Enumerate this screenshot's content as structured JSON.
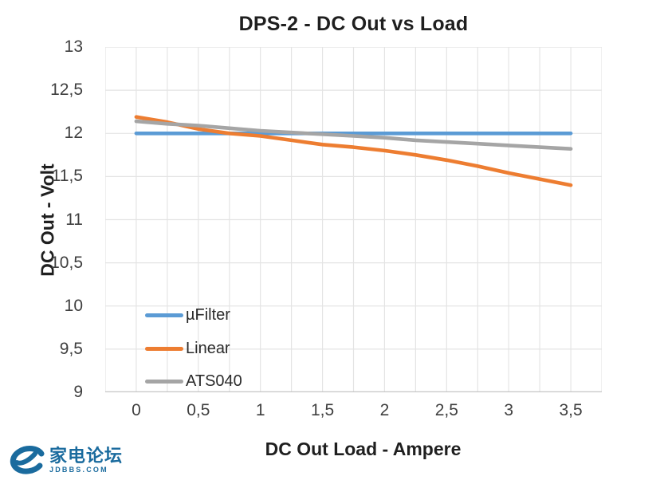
{
  "chart_data": {
    "type": "line",
    "title": "DPS-2 - DC Out vs Load",
    "xlabel": "DC Out Load - Ampere",
    "ylabel": "DC Out - Volt",
    "xlim": [
      -0.25,
      3.75
    ],
    "ylim": [
      9,
      13
    ],
    "x_grid_step": 0.25,
    "y_grid_step": 0.5,
    "grid": true,
    "legend_position": "inside-bottom-left",
    "x": [
      0,
      0.25,
      0.5,
      0.75,
      1,
      1.25,
      1.5,
      1.75,
      2,
      2.25,
      2.5,
      2.75,
      3,
      3.25,
      3.5
    ],
    "series": [
      {
        "name": "µFilter",
        "color": "#5B9BD5",
        "values": [
          12,
          12,
          12,
          12,
          12,
          12,
          12,
          12,
          12,
          12,
          12,
          12,
          12,
          12,
          12
        ]
      },
      {
        "name": "Linear",
        "color": "#ED7D31",
        "values": [
          12.19,
          12.13,
          12.05,
          12.0,
          11.97,
          11.92,
          11.87,
          11.84,
          11.8,
          11.75,
          11.69,
          11.62,
          11.54,
          11.47,
          11.4
        ]
      },
      {
        "name": "ATS040",
        "color": "#A5A5A5",
        "values": [
          12.14,
          12.11,
          12.09,
          12.06,
          12.03,
          12.01,
          11.99,
          11.97,
          11.95,
          11.92,
          11.9,
          11.88,
          11.86,
          11.84,
          11.82
        ]
      }
    ],
    "x_tick_values": [
      0,
      0.5,
      1,
      1.5,
      2,
      2.5,
      3,
      3.5
    ],
    "x_tick_labels": [
      "0",
      "0,5",
      "1",
      "1,5",
      "2",
      "2,5",
      "3",
      "3,5"
    ],
    "y_tick_values": [
      13,
      12.5,
      12,
      11.5,
      11,
      10.5,
      10,
      9.5,
      9
    ],
    "y_tick_labels": [
      "13",
      "12,5",
      "12",
      "11,5",
      "11",
      "10,5",
      "10",
      "9,5",
      "9"
    ]
  },
  "watermark": {
    "cn_text": "家电论坛",
    "domain": "JDBBS.COM",
    "color": "#1A6B9E"
  },
  "colors": {
    "grid": "#E4E4E4",
    "axis": "#C6C6C6",
    "tick_text": "#3F3F3F",
    "title_text": "#1F1F1F"
  }
}
